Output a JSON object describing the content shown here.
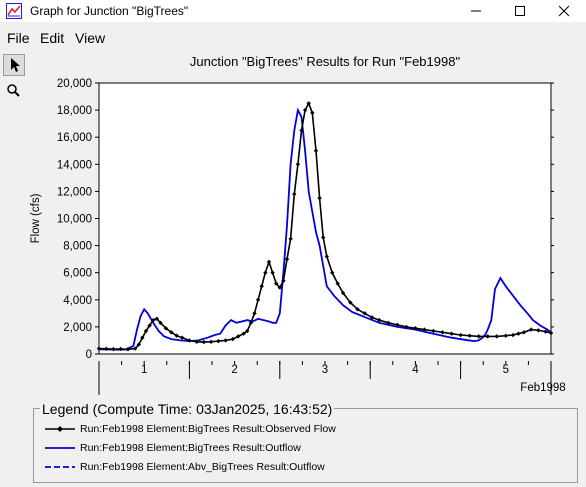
{
  "window": {
    "title": "Graph for Junction \"BigTrees\""
  },
  "menu": [
    "File",
    "Edit",
    "View"
  ],
  "tools": [
    "select-tool",
    "zoom-tool"
  ],
  "colors": {
    "observed": "#000000",
    "outflow": "#0000dd",
    "accent": "#1a1aff"
  },
  "chart_data": {
    "type": "line",
    "title": "Junction \"BigTrees\" Results for Run \"Feb1998\"",
    "ylabel": "Flow (cfs)",
    "xlabel": "Feb1998",
    "ylim": [
      0,
      20000
    ],
    "yticks": [
      0,
      2000,
      4000,
      6000,
      8000,
      10000,
      12000,
      14000,
      16000,
      18000,
      20000
    ],
    "ytick_labels": [
      "0",
      "2,000",
      "4,000",
      "6,000",
      "8,000",
      "10,000",
      "12,000",
      "14,000",
      "16,000",
      "18,000",
      "20,000"
    ],
    "xlim": [
      0.5,
      5.5
    ],
    "xticks": [
      1,
      2,
      3,
      4,
      5
    ],
    "xtick_labels": [
      "1",
      "2",
      "3",
      "4",
      "5"
    ],
    "grid": false,
    "series": [
      {
        "name": "Run:Feb1998 Element:BigTrees Result:Observed Flow",
        "style": "solid-marker",
        "x": [
          0.5,
          0.58,
          0.66,
          0.74,
          0.82,
          0.9,
          0.94,
          0.98,
          1.02,
          1.06,
          1.1,
          1.14,
          1.18,
          1.24,
          1.3,
          1.36,
          1.42,
          1.5,
          1.58,
          1.66,
          1.74,
          1.82,
          1.9,
          1.98,
          2.04,
          2.1,
          2.14,
          2.18,
          2.22,
          2.26,
          2.3,
          2.34,
          2.38,
          2.42,
          2.46,
          2.5,
          2.54,
          2.58,
          2.62,
          2.66,
          2.7,
          2.74,
          2.78,
          2.82,
          2.86,
          2.9,
          2.94,
          2.98,
          3.02,
          3.08,
          3.14,
          3.2,
          3.28,
          3.36,
          3.44,
          3.52,
          3.6,
          3.7,
          3.8,
          3.9,
          4.0,
          4.1,
          4.2,
          4.3,
          4.4,
          4.5,
          4.6,
          4.7,
          4.8,
          4.9,
          5.0,
          5.08,
          5.14,
          5.2,
          5.28,
          5.36,
          5.44,
          5.5
        ],
        "y": [
          400,
          380,
          360,
          370,
          350,
          400,
          700,
          1200,
          1700,
          2100,
          2500,
          2600,
          2300,
          1900,
          1600,
          1350,
          1200,
          1000,
          900,
          880,
          900,
          950,
          1000,
          1100,
          1300,
          1500,
          1700,
          2300,
          3000,
          4000,
          5000,
          6000,
          6800,
          6000,
          5200,
          4900,
          5400,
          7000,
          8500,
          11800,
          14000,
          16500,
          18000,
          18500,
          17800,
          15000,
          11500,
          8600,
          7200,
          6000,
          5200,
          4500,
          3800,
          3300,
          3000,
          2700,
          2500,
          2300,
          2150,
          2000,
          1900,
          1800,
          1700,
          1600,
          1500,
          1400,
          1350,
          1300,
          1300,
          1300,
          1350,
          1400,
          1500,
          1600,
          1800,
          1750,
          1650,
          1550
        ]
      },
      {
        "name": "Run:Feb1998 Element:BigTrees Result:Outflow",
        "style": "solid",
        "x": [
          0.5,
          0.6,
          0.7,
          0.8,
          0.88,
          0.92,
          0.96,
          1.0,
          1.04,
          1.1,
          1.16,
          1.22,
          1.3,
          1.4,
          1.5,
          1.6,
          1.7,
          1.78,
          1.84,
          1.9,
          1.96,
          2.02,
          2.08,
          2.14,
          2.2,
          2.26,
          2.32,
          2.38,
          2.42,
          2.46,
          2.5,
          2.54,
          2.58,
          2.62,
          2.66,
          2.7,
          2.74,
          2.78,
          2.82,
          2.86,
          2.9,
          2.94,
          2.98,
          3.02,
          3.1,
          3.2,
          3.3,
          3.45,
          3.6,
          3.8,
          4.0,
          4.2,
          4.4,
          4.55,
          4.65,
          4.7,
          4.74,
          4.77,
          4.8,
          4.84,
          4.88,
          4.94,
          5.0,
          5.08,
          5.16,
          5.24,
          5.3,
          5.38,
          5.46,
          5.5
        ],
        "y": [
          350,
          330,
          320,
          330,
          600,
          1800,
          2800,
          3300,
          3000,
          2300,
          1700,
          1300,
          1100,
          1000,
          950,
          1000,
          1200,
          1400,
          1500,
          2100,
          2500,
          2300,
          2400,
          2500,
          2400,
          2600,
          2500,
          2400,
          2300,
          2300,
          3000,
          6000,
          9500,
          14000,
          16500,
          18000,
          17500,
          15000,
          12000,
          10500,
          9000,
          8000,
          6500,
          5000,
          4300,
          3600,
          3100,
          2700,
          2300,
          2000,
          1800,
          1500,
          1200,
          1050,
          950,
          1000,
          1200,
          1400,
          1800,
          2500,
          4800,
          5600,
          5000,
          4300,
          3600,
          3000,
          2500,
          2100,
          1800,
          1600
        ]
      },
      {
        "name": "Run:Feb1998 Element:Abv_BigTrees Result:Outflow",
        "style": "dashed",
        "x": [],
        "y": []
      }
    ]
  },
  "legend": {
    "title": "Legend (Compute Time: 03Jan2025, 16:43:52)",
    "entries": [
      "Run:Feb1998 Element:BigTrees Result:Observed Flow",
      "Run:Feb1998 Element:BigTrees Result:Outflow",
      "Run:Feb1998 Element:Abv_BigTrees Result:Outflow"
    ]
  }
}
